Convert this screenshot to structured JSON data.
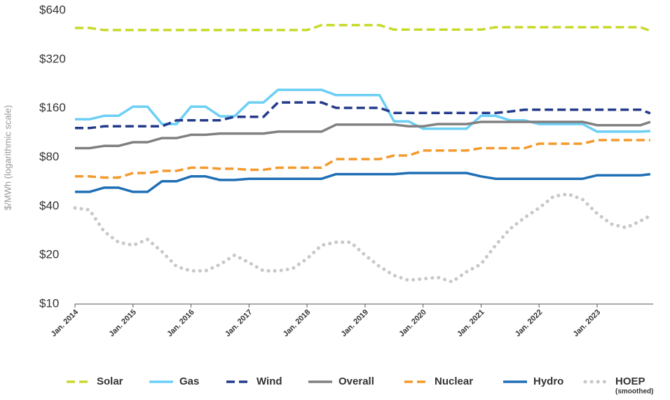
{
  "chart_data": {
    "type": "line",
    "y_label": "$/MWh (logarithmic scale)",
    "yscale": "log",
    "ylim": [
      10,
      640
    ],
    "yticks": [
      {
        "value": 10,
        "label": "$10"
      },
      {
        "value": 20,
        "label": "$20"
      },
      {
        "value": 40,
        "label": "$40"
      },
      {
        "value": 80,
        "label": "$80"
      },
      {
        "value": 160,
        "label": "$160"
      },
      {
        "value": 320,
        "label": "$320"
      },
      {
        "value": 640,
        "label": "$640"
      }
    ],
    "xticks": [
      {
        "value": "2014-01",
        "label": "Jan. 2014"
      },
      {
        "value": "2015-01",
        "label": "Jan. 2015"
      },
      {
        "value": "2016-01",
        "label": "Jan. 2016"
      },
      {
        "value": "2017-01",
        "label": "Jan. 2017"
      },
      {
        "value": "2018-01",
        "label": "Jan. 2018"
      },
      {
        "value": "2019-01",
        "label": "Jan. 2019"
      },
      {
        "value": "2020-01",
        "label": "Jan. 2020"
      },
      {
        "value": "2021-01",
        "label": "Jan. 2021"
      },
      {
        "value": "2022-01",
        "label": "Jan. 2022"
      },
      {
        "value": "2023-01",
        "label": "Jan. 2023"
      }
    ],
    "x": [
      "2014-01",
      "2014-04",
      "2014-07",
      "2014-10",
      "2015-01",
      "2015-04",
      "2015-07",
      "2015-10",
      "2016-01",
      "2016-04",
      "2016-07",
      "2016-10",
      "2017-01",
      "2017-04",
      "2017-07",
      "2017-10",
      "2018-01",
      "2018-04",
      "2018-07",
      "2018-10",
      "2019-01",
      "2019-04",
      "2019-07",
      "2019-10",
      "2020-01",
      "2020-04",
      "2020-07",
      "2020-10",
      "2021-01",
      "2021-04",
      "2021-07",
      "2021-10",
      "2022-01",
      "2022-04",
      "2022-07",
      "2022-10",
      "2023-01",
      "2023-04",
      "2023-07",
      "2023-10",
      "2023-12"
    ],
    "series": [
      {
        "name": "Solar",
        "color": "#c8d92b",
        "dash": "dashed",
        "values": [
          500,
          500,
          485,
          485,
          485,
          485,
          485,
          485,
          485,
          485,
          485,
          485,
          485,
          485,
          485,
          485,
          485,
          520,
          520,
          520,
          520,
          520,
          488,
          488,
          488,
          488,
          488,
          488,
          488,
          505,
          505,
          505,
          505,
          505,
          505,
          505,
          505,
          505,
          505,
          505,
          480
        ]
      },
      {
        "name": "Gas",
        "color": "#6ccff6",
        "dash": "solid",
        "values": [
          137,
          137,
          144,
          144,
          164,
          164,
          128,
          128,
          164,
          164,
          143,
          143,
          174,
          174,
          208,
          208,
          208,
          208,
          193,
          193,
          193,
          193,
          133,
          133,
          120,
          120,
          120,
          120,
          144,
          144,
          135,
          135,
          128,
          128,
          128,
          128,
          115,
          115,
          115,
          115,
          116
        ]
      },
      {
        "name": "Wind",
        "color": "#233a8a",
        "dash": "dashed",
        "values": [
          121,
          121,
          124,
          124,
          124,
          124,
          124,
          135,
          135,
          135,
          135,
          142,
          142,
          142,
          174,
          174,
          174,
          174,
          161,
          161,
          161,
          161,
          150,
          150,
          150,
          150,
          150,
          150,
          150,
          150,
          153,
          157,
          157,
          157,
          157,
          157,
          157,
          157,
          157,
          157,
          149
        ]
      },
      {
        "name": "Overall",
        "color": "#808080",
        "dash": "solid",
        "values": [
          91,
          91,
          94,
          94,
          99,
          99,
          105,
          105,
          110,
          110,
          112,
          112,
          112,
          112,
          115,
          115,
          115,
          115,
          127,
          127,
          127,
          127,
          127,
          124,
          124,
          128,
          128,
          128,
          132,
          132,
          132,
          132,
          132,
          132,
          132,
          132,
          126,
          126,
          126,
          126,
          132
        ]
      },
      {
        "name": "Nuclear",
        "color": "#f39a2d",
        "dash": "dashed",
        "values": [
          61,
          61,
          60,
          60,
          64,
          64,
          66,
          66,
          69,
          69,
          68,
          68,
          67,
          67,
          69,
          69,
          69,
          69,
          78,
          78,
          78,
          78,
          82,
          82,
          88,
          88,
          88,
          88,
          91,
          91,
          91,
          91,
          97,
          97,
          97,
          97,
          102,
          102,
          102,
          102,
          102
        ]
      },
      {
        "name": "Hydro",
        "color": "#1f6fb5",
        "dash": "solid",
        "values": [
          49,
          49,
          52,
          52,
          49,
          49,
          57,
          57,
          61,
          61,
          58,
          58,
          59,
          59,
          59,
          59,
          59,
          59,
          63,
          63,
          63,
          63,
          63,
          64,
          64,
          64,
          64,
          64,
          61,
          59,
          59,
          59,
          59,
          59,
          59,
          59,
          62,
          62,
          62,
          62,
          63
        ]
      },
      {
        "name": "HOEP",
        "name_note": "(smoothed)",
        "color": "#c8c8c8",
        "dash": "dotted",
        "values": [
          39,
          38,
          28,
          24,
          23,
          25,
          21,
          17,
          16,
          16,
          17.5,
          20,
          18,
          16,
          16,
          16.5,
          19,
          23,
          24,
          24,
          20,
          17,
          15,
          14,
          14.3,
          14.6,
          13.7,
          15.8,
          17.6,
          23,
          29,
          34,
          39,
          46,
          47.5,
          44,
          36,
          31,
          29.5,
          32.5,
          35
        ]
      }
    ]
  }
}
